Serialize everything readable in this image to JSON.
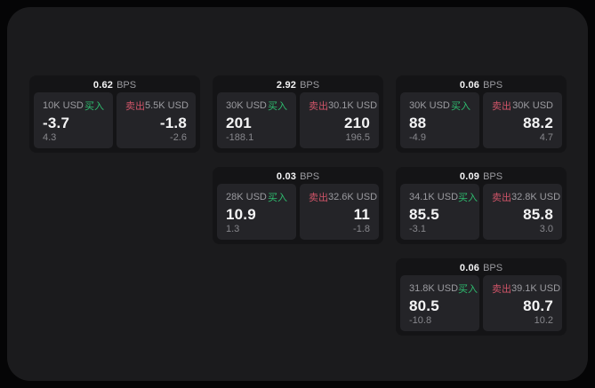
{
  "colors": {
    "page_bg": "#050506",
    "surface_bg": "#1b1b1d",
    "card_bg": "#141416",
    "panel_bg": "#242428",
    "accent_green": "#2ebd6f",
    "accent_red": "#cf5468",
    "text_primary": "#f4f4f5",
    "text_secondary": "#9b9ba0",
    "text_dim": "#87878c"
  },
  "labels": {
    "bps_unit": "BPS",
    "buy": "买入",
    "sell": "卖出"
  },
  "cards": [
    {
      "bps": "0.62",
      "buy": {
        "size": "10K USD",
        "value": "-3.7",
        "sub": "4.3"
      },
      "sell": {
        "size": "5.5K USD",
        "value": "-1.8",
        "sub": "-2.6"
      }
    },
    {
      "bps": "2.92",
      "buy": {
        "size": "30K USD",
        "value": "201",
        "sub": "-188.1"
      },
      "sell": {
        "size": "30.1K USD",
        "value": "210",
        "sub": "196.5"
      }
    },
    {
      "bps": "0.06",
      "buy": {
        "size": "30K USD",
        "value": "88",
        "sub": "-4.9"
      },
      "sell": {
        "size": "30K USD",
        "value": "88.2",
        "sub": "4.7"
      }
    },
    {
      "bps": "0.03",
      "buy": {
        "size": "28K USD",
        "value": "10.9",
        "sub": "1.3"
      },
      "sell": {
        "size": "32.6K USD",
        "value": "11",
        "sub": "-1.8"
      }
    },
    {
      "bps": "0.09",
      "buy": {
        "size": "34.1K USD",
        "value": "85.5",
        "sub": "-3.1"
      },
      "sell": {
        "size": "32.8K USD",
        "value": "85.8",
        "sub": "3.0"
      }
    },
    {
      "bps": "0.06",
      "buy": {
        "size": "31.8K USD",
        "value": "80.5",
        "sub": "-10.8"
      },
      "sell": {
        "size": "39.1K USD",
        "value": "80.7",
        "sub": "10.2"
      }
    }
  ]
}
